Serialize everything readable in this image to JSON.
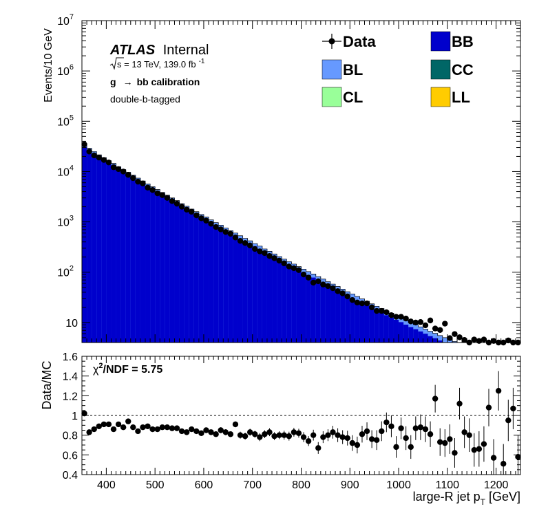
{
  "chart_data": [
    {
      "panel": "main",
      "type": "bar",
      "stacked": true,
      "log_scale_y": true,
      "ylabel": "Events/10 GeV",
      "ylim": [
        4,
        10000000
      ],
      "xlim": [
        350,
        1250
      ],
      "y_tick_labels": [
        "10",
        "10^2",
        "10^3",
        "10^4",
        "10^5",
        "10^6",
        "10^7"
      ],
      "labels": {
        "experiment": "ATLAS",
        "status": "Internal",
        "energy_prefix": "s",
        "energy_text": " = 13 TeV, 139.0 fb",
        "lumi_exp": "-1",
        "calib_g": "g",
        "calib_arrow": "→",
        "calib_rest": "bb calibration",
        "tag": "double-b-tagged"
      },
      "legend_position": "top-right",
      "legend": [
        {
          "name": "Data",
          "color": "#000000",
          "kind": "marker"
        },
        {
          "name": "BB",
          "color": "#0000cc",
          "kind": "box"
        },
        {
          "name": "BL",
          "color": "#6699ff",
          "kind": "box"
        },
        {
          "name": "CC",
          "color": "#006666",
          "kind": "box"
        },
        {
          "name": "CL",
          "color": "#99ff99",
          "kind": "box"
        },
        {
          "name": "LL",
          "color": "#ffcc00",
          "kind": "box"
        }
      ],
      "bin_width": 10,
      "x_bin_low": [
        350,
        360,
        370,
        380,
        390,
        400,
        410,
        420,
        430,
        440,
        450,
        460,
        470,
        480,
        490,
        500,
        510,
        520,
        530,
        540,
        550,
        560,
        570,
        580,
        590,
        600,
        610,
        620,
        630,
        640,
        650,
        660,
        670,
        680,
        690,
        700,
        710,
        720,
        730,
        740,
        750,
        760,
        770,
        780,
        790,
        800,
        810,
        820,
        830,
        840,
        850,
        860,
        870,
        880,
        890,
        900,
        910,
        920,
        930,
        940,
        950,
        960,
        970,
        980,
        990,
        1000,
        1010,
        1020,
        1030,
        1040,
        1050,
        1060,
        1070,
        1080,
        1090,
        1100,
        1110,
        1120,
        1130,
        1140,
        1150,
        1160,
        1170,
        1180,
        1190,
        1200,
        1210,
        1220,
        1230,
        1240
      ],
      "mc_total": [
        34000,
        29000,
        25000,
        21500,
        19000,
        16500,
        14500,
        12500,
        11000,
        9700,
        8500,
        7400,
        6500,
        5700,
        5000,
        4400,
        3850,
        3400,
        3000,
        2650,
        2300,
        2050,
        1800,
        1600,
        1400,
        1250,
        1100,
        970,
        860,
        760,
        670,
        600,
        530,
        470,
        420,
        370,
        330,
        290,
        260,
        230,
        205,
        182,
        162,
        145,
        129,
        115,
        103,
        92,
        82,
        73,
        65,
        58,
        52,
        46,
        41,
        37,
        33,
        29.5,
        26.5,
        23.5,
        21,
        19,
        17,
        15.3,
        13.8,
        12.4,
        11.2,
        10,
        9.1,
        8.2,
        7.4,
        6.7,
        6.1,
        5.5,
        5,
        4.6,
        4.2,
        3.8,
        3.5,
        3.2,
        2.9,
        2.7,
        2.5,
        2.3,
        2.1,
        1.95,
        1.8,
        1.65,
        1.5,
        1.4
      ],
      "bb_fraction": [
        0.9,
        0.9,
        0.9,
        0.9,
        0.9,
        0.9,
        0.9,
        0.9,
        0.9,
        0.9,
        0.9,
        0.9,
        0.9,
        0.9,
        0.9,
        0.9,
        0.9,
        0.9,
        0.9,
        0.89,
        0.89,
        0.89,
        0.89,
        0.89,
        0.89,
        0.89,
        0.89,
        0.89,
        0.89,
        0.88,
        0.88,
        0.88,
        0.88,
        0.88,
        0.88,
        0.88,
        0.87,
        0.87,
        0.87,
        0.87,
        0.87,
        0.86,
        0.86,
        0.86,
        0.86,
        0.86,
        0.85,
        0.85,
        0.85,
        0.85,
        0.85,
        0.84,
        0.84,
        0.84,
        0.84,
        0.84,
        0.83,
        0.83,
        0.83,
        0.83,
        0.83,
        0.82,
        0.82,
        0.82,
        0.82,
        0.82,
        0.81,
        0.81,
        0.81,
        0.81,
        0.81,
        0.8,
        0.8,
        0.8,
        0.8,
        0.8,
        0.8,
        0.8,
        0.8,
        0.8,
        0.8,
        0.8,
        0.8,
        0.8,
        0.8,
        0.8,
        0.8,
        0.8,
        0.8,
        0.8
      ],
      "data_x": [
        355,
        365,
        375,
        385,
        395,
        405,
        415,
        425,
        435,
        445,
        455,
        465,
        475,
        485,
        495,
        505,
        515,
        525,
        535,
        545,
        555,
        565,
        575,
        585,
        595,
        605,
        615,
        625,
        635,
        645,
        655,
        665,
        675,
        685,
        695,
        705,
        715,
        725,
        735,
        745,
        755,
        765,
        775,
        785,
        795,
        805,
        815,
        825,
        835,
        845,
        855,
        865,
        875,
        885,
        895,
        905,
        915,
        925,
        935,
        945,
        955,
        965,
        975,
        985,
        995,
        1005,
        1015,
        1025,
        1035,
        1045,
        1055,
        1065,
        1075,
        1085,
        1095,
        1105,
        1115,
        1125,
        1135,
        1145,
        1155,
        1165,
        1175,
        1185,
        1195,
        1205,
        1215,
        1225,
        1235,
        1245
      ],
      "data_y": [
        34700,
        25000,
        21000,
        19000,
        17000,
        15200,
        12200,
        11200,
        10000,
        8600,
        7400,
        6300,
        5800,
        4800,
        4300,
        3700,
        3400,
        3000,
        2600,
        2300,
        2000,
        1750,
        1590,
        1350,
        1180,
        1060,
        920,
        790,
        710,
        630,
        580,
        490,
        420,
        380,
        340,
        290,
        260,
        240,
        210,
        190,
        170,
        150,
        130,
        120,
        110,
        90,
        78,
        62,
        66,
        57,
        53,
        48,
        42,
        38,
        33,
        28,
        25,
        24,
        24,
        20,
        17,
        17,
        16,
        14,
        13,
        13,
        12,
        10.5,
        10,
        10.2,
        8.8,
        11,
        7.6,
        7.1,
        9.5,
        4.9,
        5.9,
        5.1,
        4.5,
        3.9,
        4.6,
        4.3,
        4.6,
        4.0,
        4.3,
        3.3,
        3.3,
        4.4,
        3.6,
        3.7
      ]
    },
    {
      "panel": "ratio",
      "type": "scatter",
      "ylabel": "Data/MC",
      "xlabel": "large-R jet p",
      "xlabel_sub": "T",
      "xlabel_unit": " [GeV]",
      "ylim": [
        0.4,
        1.6
      ],
      "xlim": [
        350,
        1250
      ],
      "x_ticks": [
        400,
        500,
        600,
        700,
        800,
        900,
        1000,
        1100,
        1200
      ],
      "y_ticks": [
        0.4,
        0.6,
        0.8,
        1,
        1.2,
        1.4,
        1.6
      ],
      "reference_line": 1,
      "chi2_label": "χ",
      "chi2_exp": "2",
      "chi2_text": "/NDF = 5.75",
      "x": [
        355,
        365,
        375,
        385,
        395,
        405,
        415,
        425,
        435,
        445,
        455,
        465,
        475,
        485,
        495,
        505,
        515,
        525,
        535,
        545,
        555,
        565,
        575,
        585,
        595,
        605,
        615,
        625,
        635,
        645,
        655,
        665,
        675,
        685,
        695,
        705,
        715,
        725,
        735,
        745,
        755,
        765,
        775,
        785,
        795,
        805,
        815,
        825,
        835,
        845,
        855,
        865,
        875,
        885,
        895,
        905,
        915,
        925,
        935,
        945,
        955,
        965,
        975,
        985,
        995,
        1005,
        1015,
        1025,
        1035,
        1045,
        1055,
        1065,
        1075,
        1085,
        1095,
        1105,
        1115,
        1125,
        1135,
        1145,
        1155,
        1165,
        1175,
        1185,
        1195,
        1205,
        1215,
        1225,
        1235,
        1245
      ],
      "y": [
        1.02,
        0.83,
        0.86,
        0.89,
        0.91,
        0.91,
        0.86,
        0.91,
        0.88,
        0.94,
        0.88,
        0.84,
        0.88,
        0.89,
        0.86,
        0.86,
        0.88,
        0.88,
        0.87,
        0.87,
        0.84,
        0.83,
        0.86,
        0.84,
        0.82,
        0.85,
        0.83,
        0.81,
        0.85,
        0.83,
        0.81,
        0.91,
        0.8,
        0.79,
        0.83,
        0.81,
        0.78,
        0.81,
        0.83,
        0.79,
        0.8,
        0.8,
        0.79,
        0.83,
        0.82,
        0.78,
        0.74,
        0.8,
        0.67,
        0.78,
        0.8,
        0.83,
        0.8,
        0.78,
        0.77,
        0.72,
        0.7,
        0.81,
        0.84,
        0.76,
        0.75,
        0.84,
        0.93,
        0.89,
        0.68,
        0.87,
        0.77,
        0.68,
        0.87,
        0.88,
        0.86,
        0.81,
        1.17,
        0.73,
        0.72,
        0.76,
        0.62,
        1.12,
        0.83,
        0.8,
        0.65,
        0.66,
        0.71,
        1.08,
        0.57,
        1.25,
        0.51,
        0.95,
        1.07,
        0.58
      ],
      "err": [
        0.02,
        0.02,
        0.02,
        0.02,
        0.02,
        0.02,
        0.02,
        0.02,
        0.02,
        0.02,
        0.02,
        0.02,
        0.02,
        0.02,
        0.02,
        0.02,
        0.02,
        0.02,
        0.02,
        0.02,
        0.02,
        0.02,
        0.02,
        0.02,
        0.025,
        0.025,
        0.025,
        0.025,
        0.03,
        0.03,
        0.03,
        0.03,
        0.035,
        0.035,
        0.035,
        0.035,
        0.04,
        0.04,
        0.04,
        0.04,
        0.04,
        0.045,
        0.045,
        0.045,
        0.045,
        0.05,
        0.05,
        0.055,
        0.06,
        0.06,
        0.06,
        0.065,
        0.07,
        0.07,
        0.075,
        0.08,
        0.085,
        0.085,
        0.09,
        0.09,
        0.1,
        0.1,
        0.1,
        0.11,
        0.11,
        0.11,
        0.12,
        0.12,
        0.12,
        0.13,
        0.13,
        0.13,
        0.14,
        0.14,
        0.14,
        0.15,
        0.15,
        0.16,
        0.16,
        0.17,
        0.17,
        0.18,
        0.18,
        0.19,
        0.19,
        0.2,
        0.2,
        0.21,
        0.21,
        0.22
      ]
    }
  ]
}
